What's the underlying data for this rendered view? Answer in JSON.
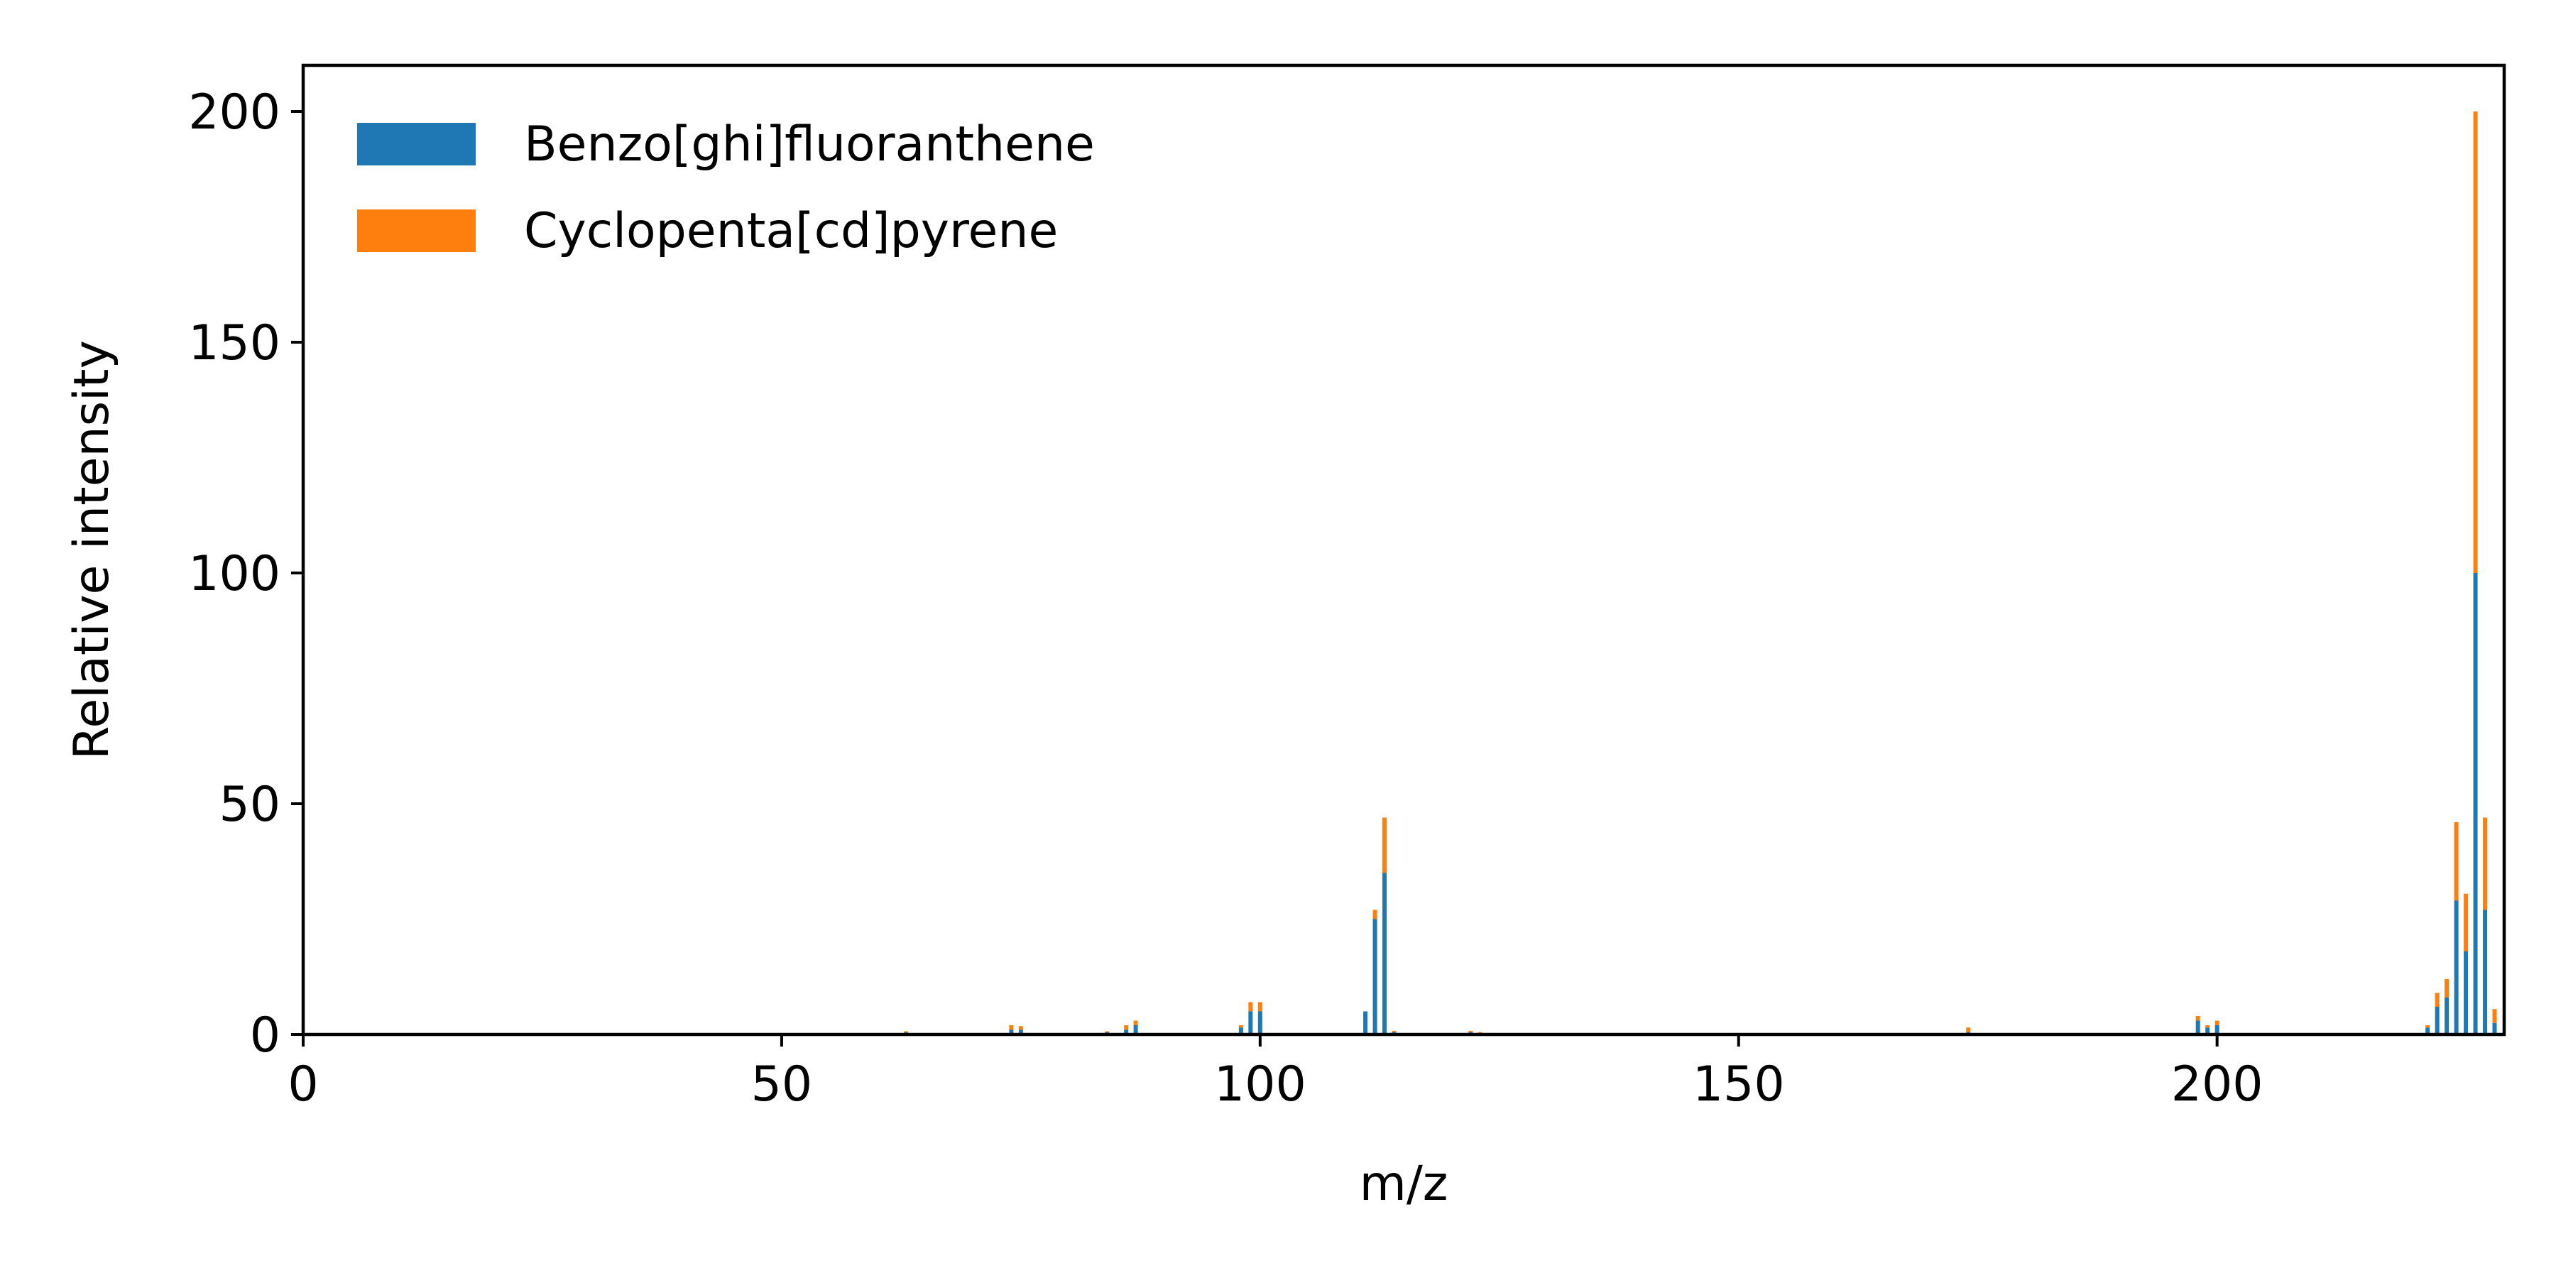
{
  "chart_data": {
    "type": "bar",
    "stacked": true,
    "title": "",
    "xlabel": "m/z",
    "ylabel": "Relative intensity",
    "xlim": [
      0,
      230
    ],
    "ylim": [
      0,
      210
    ],
    "xticks": [
      0,
      50,
      100,
      150,
      200
    ],
    "yticks": [
      0,
      50,
      100,
      150,
      200
    ],
    "legend_position": "top-left",
    "grid": false,
    "series": [
      {
        "name": "Benzo[ghi]fluoranthene",
        "color": "#1f77b4",
        "x": [
          63,
          74,
          75,
          84,
          86,
          87,
          98,
          99,
          100,
          111,
          112,
          113,
          114,
          122,
          123,
          150,
          174,
          198,
          199,
          200,
          222,
          223,
          224,
          225,
          226,
          227,
          228,
          229
        ],
        "values": [
          0.5,
          1,
          1,
          0.5,
          1,
          2,
          1.5,
          5,
          5,
          5,
          25,
          35,
          0.5,
          0.5,
          0.3,
          0.2,
          0.5,
          3,
          1.5,
          2,
          1.5,
          6,
          8,
          29,
          18,
          100,
          27,
          2.5
        ]
      },
      {
        "name": "Cyclopenta[cd]pyrene",
        "color": "#ff7f0e",
        "x": [
          63,
          74,
          75,
          84,
          86,
          87,
          98,
          99,
          100,
          111,
          112,
          113,
          114,
          122,
          123,
          150,
          174,
          198,
          199,
          200,
          222,
          223,
          224,
          225,
          226,
          227,
          228,
          229
        ],
        "values": [
          0.2,
          1,
          0.8,
          0.2,
          1,
          1,
          0.5,
          2,
          2,
          0,
          2,
          12,
          0.3,
          0.3,
          0.2,
          0.1,
          1,
          1,
          0.5,
          1,
          0.5,
          3,
          4,
          17,
          12.5,
          100,
          20,
          3
        ]
      }
    ]
  }
}
